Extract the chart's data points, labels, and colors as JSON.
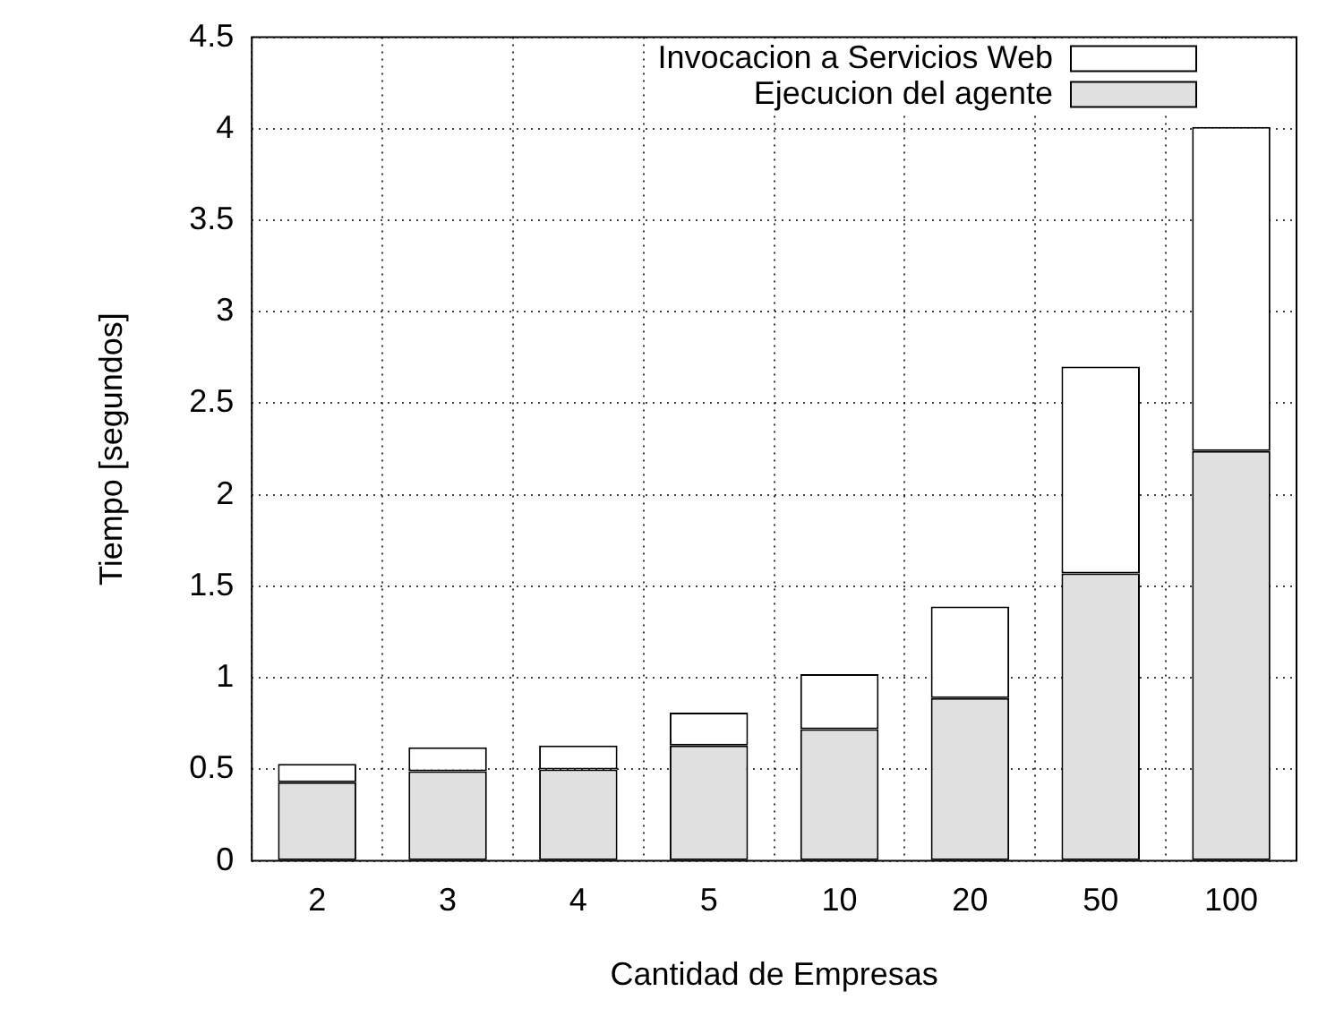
{
  "chart_data": {
    "type": "bar",
    "stacked": true,
    "xlabel": "Cantidad de Empresas",
    "ylabel": "Tiempo [segundos]",
    "categories": [
      "2",
      "3",
      "4",
      "5",
      "10",
      "20",
      "50",
      "100"
    ],
    "series": [
      {
        "name": "Ejecucion del agente",
        "color": "#e0e0e0",
        "values": [
          0.43,
          0.49,
          0.5,
          0.63,
          0.72,
          0.89,
          1.57,
          2.24
        ]
      },
      {
        "name": "Invocacion a Servicios Web",
        "color": "#ffffff",
        "values": [
          0.1,
          0.13,
          0.13,
          0.18,
          0.3,
          0.5,
          1.13,
          1.77
        ]
      }
    ],
    "ylim": [
      0,
      4.5
    ],
    "yticks": [
      0,
      0.5,
      1,
      1.5,
      2,
      2.5,
      3,
      3.5,
      4,
      4.5
    ],
    "grid": true,
    "legend": "top right"
  }
}
